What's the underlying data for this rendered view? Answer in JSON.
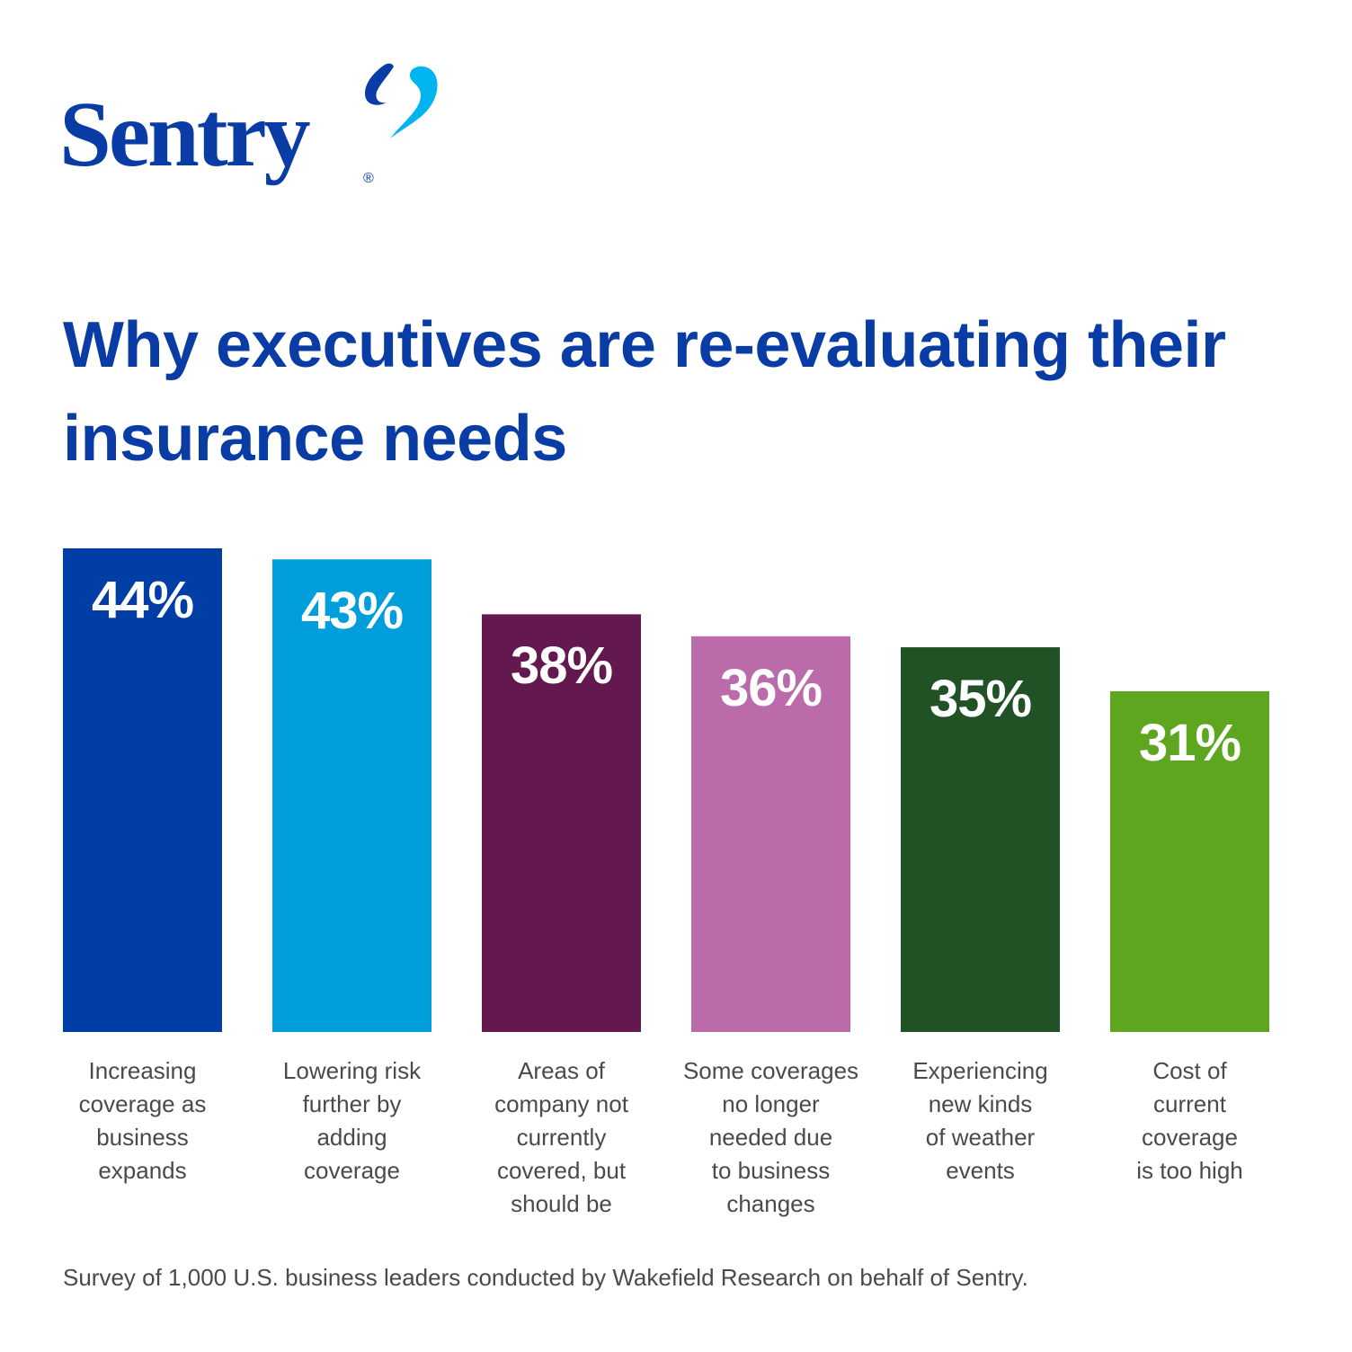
{
  "brand": {
    "name": "Sentry",
    "registered": "®",
    "colors": {
      "primary": "#0a3ca5",
      "accent": "#00b5ef"
    }
  },
  "chart_data": {
    "type": "bar",
    "title": "Why executives are re-evaluating their insurance needs",
    "categories": [
      "Increasing coverage as business expands",
      "Lowering risk further by adding coverage",
      "Areas of company not currently covered, but should be",
      "Some coverages no longer needed due to business changes",
      "Experiencing new kinds of weather events",
      "Cost of current coverage is too high"
    ],
    "category_lines": [
      [
        "Increasing",
        "coverage as",
        "business",
        "expands"
      ],
      [
        "Lowering risk",
        "further by",
        "adding",
        "coverage"
      ],
      [
        "Areas of",
        "company not",
        "currently",
        "covered, but",
        "should be"
      ],
      [
        "Some coverages",
        "no longer",
        "needed due",
        "to business",
        "changes"
      ],
      [
        "Experiencing",
        "new kinds",
        "of weather",
        "events"
      ],
      [
        "Cost of",
        "current",
        "coverage",
        "is too high"
      ]
    ],
    "values": [
      44,
      43,
      38,
      36,
      35,
      31
    ],
    "value_labels": [
      "44%",
      "43%",
      "38%",
      "36%",
      "35%",
      "31%"
    ],
    "colors": [
      "#003DA5",
      "#009FDB",
      "#63194F",
      "#BC6BAA",
      "#205226",
      "#5EA620"
    ],
    "xlabel": "",
    "ylabel": "",
    "ylim": [
      0,
      44
    ],
    "grid": false
  },
  "footnote": "Survey of 1,000 U.S. business leaders conducted by Wakefield Research on behalf of Sentry."
}
